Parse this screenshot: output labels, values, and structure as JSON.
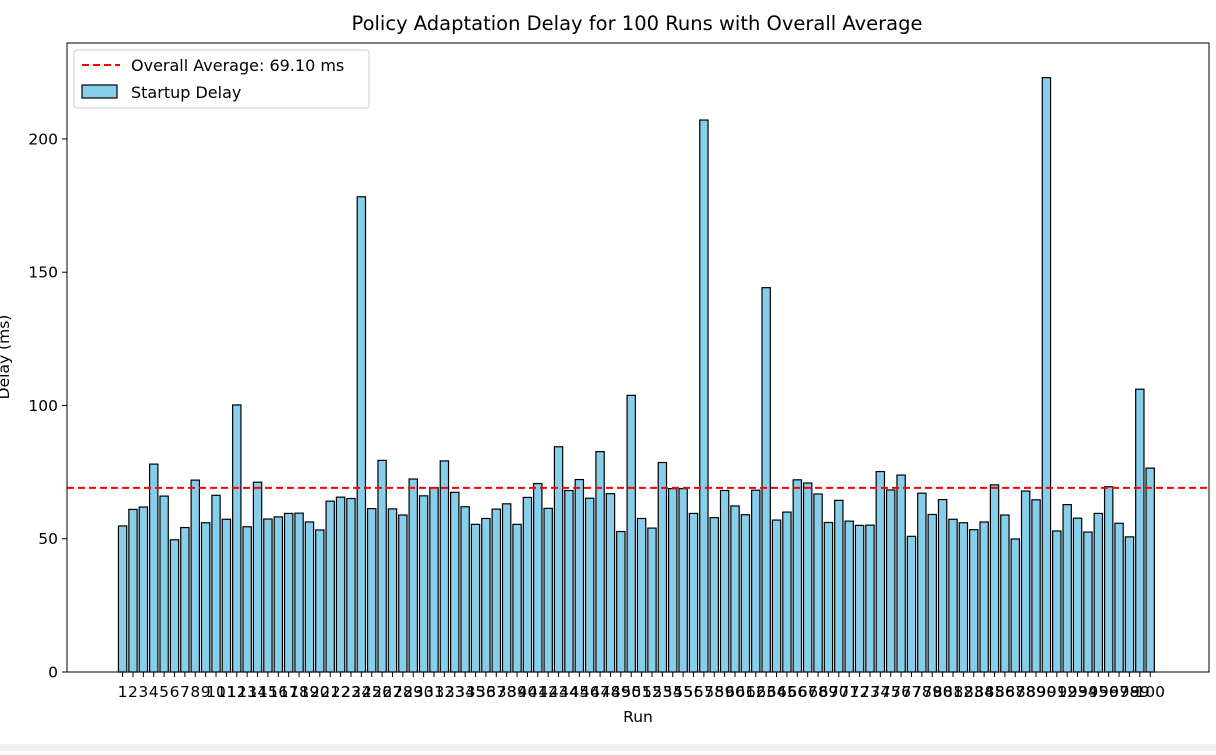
{
  "chart_data": {
    "type": "bar",
    "title": "Policy Adaptation Delay for 100 Runs with Overall Average",
    "xlabel": "Run",
    "ylabel": "Delay (ms)",
    "ylim": [
      0,
      236
    ],
    "yticks": [
      0,
      50,
      100,
      150,
      200
    ],
    "grid": false,
    "legend_position": "top-left",
    "categories": [
      "1",
      "2",
      "3",
      "4",
      "5",
      "6",
      "7",
      "8",
      "9",
      "10",
      "11",
      "12",
      "13",
      "14",
      "15",
      "16",
      "17",
      "18",
      "19",
      "20",
      "21",
      "22",
      "23",
      "24",
      "25",
      "26",
      "27",
      "28",
      "29",
      "30",
      "31",
      "32",
      "33",
      "34",
      "35",
      "36",
      "37",
      "38",
      "39",
      "40",
      "41",
      "42",
      "43",
      "44",
      "45",
      "46",
      "47",
      "48",
      "49",
      "50",
      "51",
      "52",
      "53",
      "54",
      "55",
      "56",
      "57",
      "58",
      "59",
      "60",
      "61",
      "62",
      "63",
      "64",
      "65",
      "66",
      "67",
      "68",
      "69",
      "70",
      "71",
      "72",
      "73",
      "74",
      "75",
      "76",
      "77",
      "78",
      "79",
      "80",
      "81",
      "82",
      "83",
      "84",
      "85",
      "86",
      "87",
      "88",
      "89",
      "90",
      "91",
      "92",
      "93",
      "94",
      "95",
      "96",
      "97",
      "98",
      "99",
      "100"
    ],
    "series": [
      {
        "name": "Startup Delay",
        "color": "#87ceeb",
        "edgecolor": "#000000",
        "values": [
          54.8,
          61.0,
          61.9,
          78.0,
          66.0,
          49.6,
          54.2,
          72.0,
          56.0,
          66.3,
          57.3,
          100.2,
          54.5,
          71.2,
          57.4,
          58.2,
          59.5,
          59.6,
          56.3,
          53.3,
          64.1,
          65.6,
          65.1,
          178.3,
          61.3,
          79.4,
          61.2,
          58.9,
          72.4,
          66.1,
          69.2,
          79.2,
          67.4,
          62.0,
          55.4,
          57.6,
          61.1,
          63.1,
          55.4,
          65.5,
          70.7,
          61.4,
          84.5,
          68.1,
          72.2,
          65.2,
          82.7,
          66.9,
          52.7,
          103.8,
          57.6,
          54.0,
          78.6,
          68.8,
          68.8,
          59.5,
          207.1,
          57.9,
          68.1,
          62.3,
          59.0,
          68.2,
          144.2,
          57.0,
          60.0,
          72.1,
          70.9,
          66.8,
          56.1,
          64.4,
          56.6,
          55.0,
          55.1,
          75.2,
          68.3,
          73.9,
          50.9,
          67.1,
          59.1,
          64.7,
          57.3,
          56.0,
          53.4,
          56.3,
          70.2,
          58.9,
          49.9,
          67.9,
          64.6,
          223.0,
          52.9,
          62.8,
          57.7,
          52.5,
          59.5,
          69.5,
          55.8,
          50.7,
          106.1,
          76.5
        ]
      }
    ],
    "reference_lines": [
      {
        "name": "Overall Average: 69.10 ms",
        "value": 69.1,
        "color": "#ff0000",
        "style": "dashed"
      }
    ]
  },
  "legend": {
    "average_label": "Overall Average: 69.10 ms",
    "series_label": "Startup Delay"
  }
}
